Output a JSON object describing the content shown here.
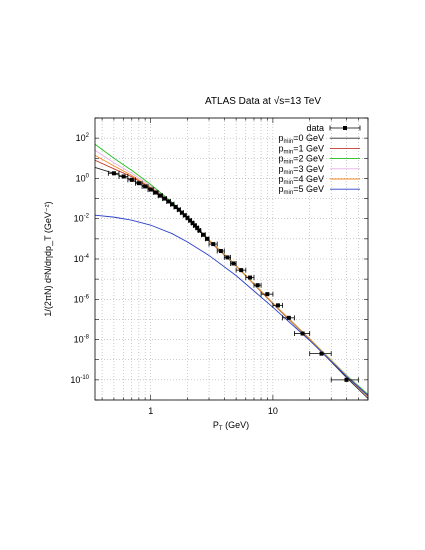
{
  "chart_data": {
    "type": "line",
    "title_prefix": "ATLAS Data at ",
    "title_sqrt_sym": "√",
    "title_suffix": "s=13 TeV",
    "xlabel_main": "P",
    "xlabel_sub": "T",
    "xlabel_unit": " (GeV)",
    "ylabel": "1/(2πN) d²N/dηdp_T (GeV⁻²)",
    "x_scale": "log",
    "y_scale": "log",
    "xlim": [
      0.35,
      60
    ],
    "ylim": [
      1e-11,
      1000
    ],
    "grid": true,
    "legend_position": "top-right",
    "x_ticks": [
      {
        "v": 1,
        "label": "1"
      },
      {
        "v": 10,
        "label": "10"
      }
    ],
    "y_ticks": [
      {
        "v": 100,
        "base": "10",
        "exp": "2"
      },
      {
        "v": 1,
        "base": "10",
        "exp": "0"
      },
      {
        "v": 0.01,
        "base": "10",
        "exp": "-2"
      },
      {
        "v": 0.0001,
        "base": "10",
        "exp": "-4"
      },
      {
        "v": 1e-06,
        "base": "10",
        "exp": "-6"
      },
      {
        "v": 1e-08,
        "base": "10",
        "exp": "-8"
      },
      {
        "v": 1e-10,
        "base": "10",
        "exp": "-10"
      }
    ],
    "data_series": {
      "name": "data",
      "color": "#000000",
      "points": [
        {
          "x": 0.5,
          "y": 1.8,
          "xerr": 0.05
        },
        {
          "x": 0.6,
          "y": 1.25,
          "xerr": 0.05
        },
        {
          "x": 0.7,
          "y": 0.85,
          "xerr": 0.05
        },
        {
          "x": 0.8,
          "y": 0.58,
          "xerr": 0.05
        },
        {
          "x": 0.9,
          "y": 0.4,
          "xerr": 0.05
        },
        {
          "x": 1.0,
          "y": 0.28,
          "xerr": 0.05
        },
        {
          "x": 1.1,
          "y": 0.2,
          "xerr": 0.05
        },
        {
          "x": 1.2,
          "y": 0.14,
          "xerr": 0.05
        },
        {
          "x": 1.3,
          "y": 0.1,
          "xerr": 0.05
        },
        {
          "x": 1.4,
          "y": 0.072,
          "xerr": 0.05
        },
        {
          "x": 1.5,
          "y": 0.052,
          "xerr": 0.05
        },
        {
          "x": 1.6,
          "y": 0.038,
          "xerr": 0.05
        },
        {
          "x": 1.7,
          "y": 0.028,
          "xerr": 0.05
        },
        {
          "x": 1.8,
          "y": 0.02,
          "xerr": 0.05
        },
        {
          "x": 1.9,
          "y": 0.0148,
          "xerr": 0.05
        },
        {
          "x": 2.0,
          "y": 0.011,
          "xerr": 0.05
        },
        {
          "x": 2.1,
          "y": 0.0082,
          "xerr": 0.05
        },
        {
          "x": 2.2,
          "y": 0.0061,
          "xerr": 0.05
        },
        {
          "x": 2.3,
          "y": 0.0046,
          "xerr": 0.05
        },
        {
          "x": 2.4,
          "y": 0.0035,
          "xerr": 0.05
        },
        {
          "x": 2.5,
          "y": 0.0026,
          "xerr": 0.05
        },
        {
          "x": 2.7,
          "y": 0.0016,
          "xerr": 0.1
        },
        {
          "x": 2.9,
          "y": 0.001,
          "xerr": 0.1
        },
        {
          "x": 3.25,
          "y": 0.00055,
          "xerr": 0.25
        },
        {
          "x": 3.75,
          "y": 0.00025,
          "xerr": 0.25
        },
        {
          "x": 4.25,
          "y": 0.00012,
          "xerr": 0.25
        },
        {
          "x": 4.75,
          "y": 6e-05,
          "xerr": 0.25
        },
        {
          "x": 5.5,
          "y": 2.8e-05,
          "xerr": 0.5
        },
        {
          "x": 6.5,
          "y": 1.2e-05,
          "xerr": 0.5
        },
        {
          "x": 7.5,
          "y": 5e-06,
          "xerr": 0.5
        },
        {
          "x": 9.0,
          "y": 1.8e-06,
          "xerr": 1.0
        },
        {
          "x": 11.0,
          "y": 5e-07,
          "xerr": 1.0
        },
        {
          "x": 13.5,
          "y": 1.2e-07,
          "xerr": 1.5
        },
        {
          "x": 17.5,
          "y": 2e-08,
          "xerr": 2.5
        },
        {
          "x": 25.0,
          "y": 2e-09,
          "xerr": 5.0
        },
        {
          "x": 40.0,
          "y": 1e-10,
          "xerr": 10.0
        }
      ]
    },
    "model_series": [
      {
        "label_main": "p",
        "label_sub": "min",
        "label_rest": "=0 GeV",
        "color": "#2a2a2a",
        "points": [
          [
            0.35,
            3.5
          ],
          [
            0.5,
            1.8
          ],
          [
            0.7,
            0.85
          ],
          [
            1,
            0.28
          ],
          [
            1.5,
            0.052
          ],
          [
            2,
            0.011
          ],
          [
            3,
            0.0008
          ],
          [
            5,
            4.5e-05
          ],
          [
            10,
            6e-07
          ],
          [
            20,
            1e-08
          ],
          [
            40,
            1.3e-10
          ],
          [
            60,
            1.2e-11
          ]
        ]
      },
      {
        "label_main": "p",
        "label_sub": "min",
        "label_rest": "=1 GeV",
        "color": "#c0392b",
        "points": [
          [
            0.35,
            8
          ],
          [
            0.5,
            3
          ],
          [
            0.7,
            1.2
          ],
          [
            1,
            0.33
          ],
          [
            1.5,
            0.055
          ],
          [
            2,
            0.0115
          ],
          [
            3,
            0.00085
          ],
          [
            5,
            4.6e-05
          ],
          [
            10,
            6.2e-07
          ],
          [
            20,
            1.05e-08
          ],
          [
            40,
            1.5e-10
          ],
          [
            60,
            1.5e-11
          ]
        ]
      },
      {
        "label_main": "p",
        "label_sub": "min",
        "label_rest": "=2 GeV",
        "color": "#22c21f",
        "points": [
          [
            0.35,
            50
          ],
          [
            0.5,
            10
          ],
          [
            0.7,
            2.5
          ],
          [
            1,
            0.5
          ],
          [
            1.5,
            0.065
          ],
          [
            2,
            0.012
          ],
          [
            3,
            0.0009
          ],
          [
            5,
            4.8e-05
          ],
          [
            10,
            6.5e-07
          ],
          [
            20,
            1.1e-08
          ],
          [
            40,
            1.7e-10
          ],
          [
            60,
            1.9e-11
          ]
        ]
      },
      {
        "label_main": "p",
        "label_sub": "min",
        "label_rest": "=3 GeV",
        "color": "#e8b0e8",
        "points": [
          [
            0.35,
            25
          ],
          [
            0.5,
            6
          ],
          [
            0.7,
            1.8
          ],
          [
            1,
            0.42
          ],
          [
            1.5,
            0.06
          ],
          [
            2,
            0.0118
          ],
          [
            3,
            0.00088
          ],
          [
            5,
            4.7e-05
          ],
          [
            10,
            6.4e-07
          ],
          [
            20,
            1.08e-08
          ],
          [
            40,
            1.6e-10
          ],
          [
            60,
            1.7e-11
          ]
        ]
      },
      {
        "label_main": "p",
        "label_sub": "min",
        "label_rest": "=4 GeV",
        "color": "#f28c28",
        "points": [
          [
            0.35,
            14
          ],
          [
            0.5,
            4.2
          ],
          [
            0.7,
            1.4
          ],
          [
            1,
            0.36
          ],
          [
            1.5,
            0.057
          ],
          [
            2,
            0.0116
          ],
          [
            3,
            0.00086
          ],
          [
            5,
            4.6e-05
          ],
          [
            10,
            6.3e-07
          ],
          [
            20,
            1.06e-08
          ],
          [
            40,
            1.55e-10
          ],
          [
            60,
            1.6e-11
          ]
        ]
      },
      {
        "label_main": "p",
        "label_sub": "min",
        "label_rest": "=5 GeV",
        "color": "#2b3fc8",
        "points": [
          [
            0.35,
            0.015
          ],
          [
            0.5,
            0.012
          ],
          [
            0.7,
            0.0085
          ],
          [
            1,
            0.0048
          ],
          [
            1.5,
            0.0018
          ],
          [
            2,
            0.0007
          ],
          [
            3,
            0.00015
          ],
          [
            5,
            1.5e-05
          ],
          [
            10,
            4e-07
          ],
          [
            20,
            9e-09
          ],
          [
            40,
            1.5e-10
          ],
          [
            60,
            1.7e-11
          ]
        ]
      }
    ]
  }
}
